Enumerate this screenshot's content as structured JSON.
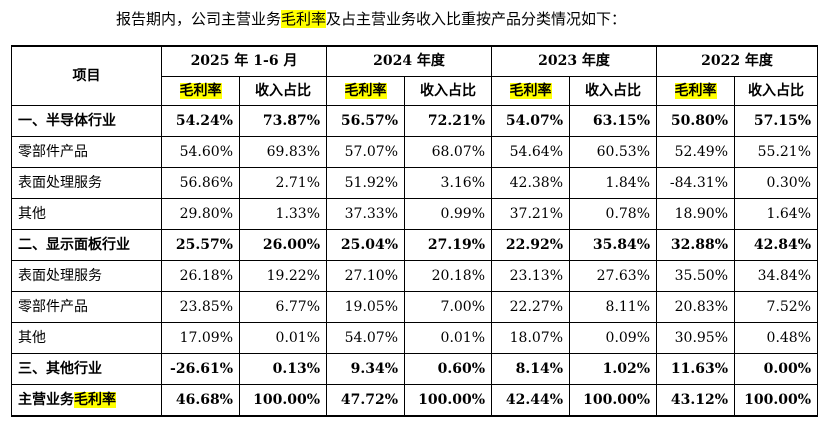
{
  "intro": {
    "before": "报告期内，公司主营业务",
    "highlight": "毛利率",
    "after": "及占主营业务收入比重按产品分类情况如下："
  },
  "table": {
    "item_header": "项目",
    "periods": [
      "2025 年 1-6 月",
      "2024 年度",
      "2023 年度",
      "2022 年度"
    ],
    "sub_headers": {
      "margin": "毛利率",
      "share": "收入占比"
    },
    "rows": [
      {
        "label": "一、半导体行业",
        "bold": true,
        "values": [
          "54.24%",
          "73.87%",
          "56.57%",
          "72.21%",
          "54.07%",
          "63.15%",
          "50.80%",
          "57.15%"
        ]
      },
      {
        "label": "零部件产品",
        "bold": false,
        "values": [
          "54.60%",
          "69.83%",
          "57.07%",
          "68.07%",
          "54.64%",
          "60.53%",
          "52.49%",
          "55.21%"
        ]
      },
      {
        "label": "表面处理服务",
        "bold": false,
        "values": [
          "56.86%",
          "2.71%",
          "51.92%",
          "3.16%",
          "42.38%",
          "1.84%",
          "-84.31%",
          "0.30%"
        ]
      },
      {
        "label": "其他",
        "bold": false,
        "values": [
          "29.80%",
          "1.33%",
          "37.33%",
          "0.99%",
          "37.21%",
          "0.78%",
          "18.90%",
          "1.64%"
        ]
      },
      {
        "label": "二、显示面板行业",
        "bold": true,
        "values": [
          "25.57%",
          "26.00%",
          "25.04%",
          "27.19%",
          "22.92%",
          "35.84%",
          "32.88%",
          "42.84%"
        ]
      },
      {
        "label": "表面处理服务",
        "bold": false,
        "values": [
          "26.18%",
          "19.22%",
          "27.10%",
          "20.18%",
          "23.13%",
          "27.63%",
          "35.50%",
          "34.84%"
        ]
      },
      {
        "label": "零部件产品",
        "bold": false,
        "values": [
          "23.85%",
          "6.77%",
          "19.05%",
          "7.00%",
          "22.27%",
          "8.11%",
          "20.83%",
          "7.52%"
        ]
      },
      {
        "label": "其他",
        "bold": false,
        "values": [
          "17.09%",
          "0.01%",
          "54.07%",
          "0.01%",
          "18.07%",
          "0.09%",
          "30.95%",
          "0.48%"
        ]
      },
      {
        "label": "三、其他行业",
        "bold": true,
        "values": [
          "-26.61%",
          "0.13%",
          "9.34%",
          "0.60%",
          "8.14%",
          "1.02%",
          "11.63%",
          "0.00%"
        ]
      }
    ],
    "total": {
      "label_before": "主营业务",
      "label_highlight": "毛利率",
      "values": [
        "46.68%",
        "100.00%",
        "47.72%",
        "100.00%",
        "42.44%",
        "100.00%",
        "43.12%",
        "100.00%"
      ]
    }
  }
}
